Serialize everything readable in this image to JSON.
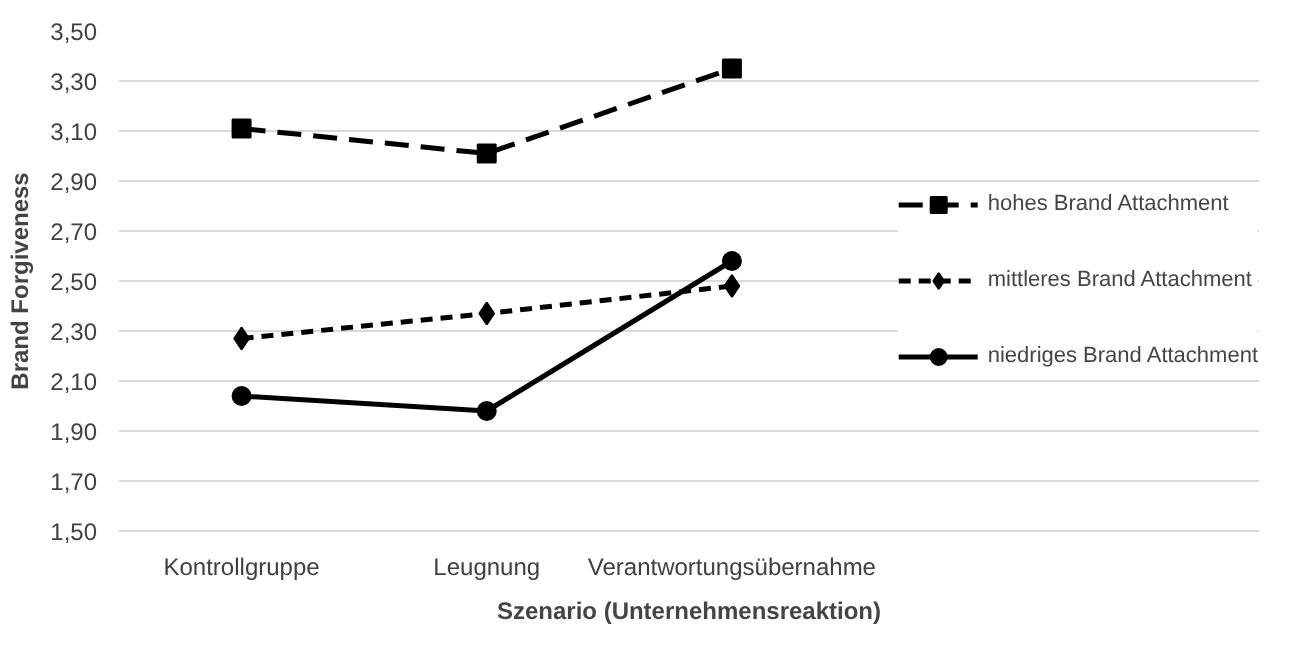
{
  "chart_data": {
    "type": "line",
    "xlabel": "Szenario (Unternehmensreaktion)",
    "ylabel": "Brand Forgiveness",
    "categories": [
      "Kontrollgruppe",
      "Leugnung",
      "Verantwortungsübernahme"
    ],
    "series": [
      {
        "name": "hohes Brand Attachment",
        "color": "#000000",
        "values": [
          3.11,
          3.01,
          3.35
        ],
        "marker": "square",
        "line_style": "dashed"
      },
      {
        "name": "mittleres Brand Attachment",
        "color": "#000000",
        "values": [
          2.27,
          2.37,
          2.48
        ],
        "marker": "diamond",
        "line_style": "dotted"
      },
      {
        "name": "niedriges Brand Attachment",
        "color": "#000000",
        "values": [
          2.04,
          1.98,
          2.58
        ],
        "marker": "circle",
        "line_style": "solid"
      }
    ],
    "ylim": [
      1.5,
      3.5
    ],
    "yticks": [
      {
        "value": 1.5,
        "label": "1,50"
      },
      {
        "value": 1.7,
        "label": "1,70"
      },
      {
        "value": 1.9,
        "label": "1,90"
      },
      {
        "value": 2.1,
        "label": "2,10"
      },
      {
        "value": 2.3,
        "label": "2,30"
      },
      {
        "value": 2.5,
        "label": "2,50"
      },
      {
        "value": 2.7,
        "label": "2,70"
      },
      {
        "value": 2.9,
        "label": "2,90"
      },
      {
        "value": 3.1,
        "label": "3,10"
      },
      {
        "value": 3.3,
        "label": "3,30"
      },
      {
        "value": 3.5,
        "label": "3,50"
      }
    ],
    "grid": "y",
    "legend": "right"
  }
}
